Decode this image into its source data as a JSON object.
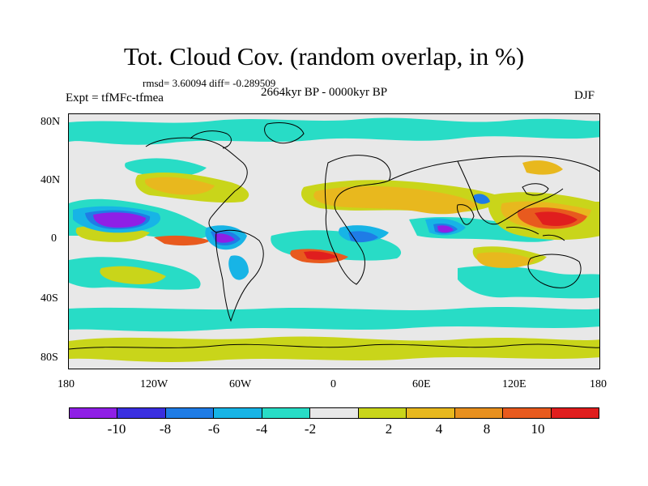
{
  "title": "Tot. Cloud Cov. (random overlap, in %)",
  "stats": "rmsd= 3.60094  diff= -0.289509",
  "experiment": "Expt = tfMFc-tfmea",
  "period": "2664kyr BP - 0000kyr BP",
  "season": "DJF",
  "lat_ticks": [
    "80N",
    "40N",
    "0",
    "40S",
    "80S"
  ],
  "lon_ticks": [
    "180",
    "120W",
    "60W",
    "0",
    "60E",
    "120E",
    "180"
  ],
  "colorbar": {
    "colors": [
      "#8f1fe6",
      "#3a2fe0",
      "#1f7ce6",
      "#17b4e6",
      "#28dcc6",
      "#e8e8e8",
      "#c9d51a",
      "#e8b81e",
      "#e8901e",
      "#e85a1e",
      "#e01e1e"
    ],
    "labels": [
      "-10",
      "-8",
      "-6",
      "-4",
      "-2",
      "2",
      "4",
      "8",
      "10"
    ]
  }
}
